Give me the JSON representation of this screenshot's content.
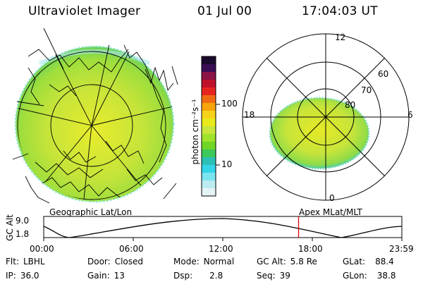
{
  "header": {
    "instrument": "Ultraviolet Imager",
    "date": "01 Jul 00",
    "time": "17:04:03 UT"
  },
  "colorbar": {
    "unit_label": "photon cm⁻²s⁻¹",
    "ticks": [
      "100",
      "10"
    ],
    "colors": [
      "#1a0a2e",
      "#3a0d55",
      "#8a1446",
      "#c0112b",
      "#e6231e",
      "#f06a14",
      "#f7a30c",
      "#f6d21a",
      "#e8ea1a",
      "#c8e63a",
      "#9ee22c",
      "#6fd628",
      "#3cc95a",
      "#2bbfb5",
      "#35d5e8",
      "#7ae4ef",
      "#bcecf2",
      "#e6f3f6"
    ]
  },
  "polar_plot": {
    "mlt_labels": {
      "top": "12",
      "left": "18",
      "right": "6",
      "bottom": "0"
    },
    "lat_labels": [
      "60",
      "70",
      "80"
    ]
  },
  "timeline": {
    "left_title": "Geographic Lat/Lon",
    "right_title": "Apex MLat/MLT",
    "y_axis_label": "GC Alt",
    "y_ticks": [
      "9.0",
      "1.8"
    ],
    "x_ticks": [
      "00:00",
      "06:00",
      "12:00",
      "18:00",
      "23:59"
    ],
    "marker_time": "17:04:03",
    "marker_color": "#e00000"
  },
  "footer": {
    "row1": [
      {
        "key": "Flt:",
        "value": "LBHL"
      },
      {
        "key": "Door:",
        "value": "Closed"
      },
      {
        "key": "Mode:",
        "value": "Normal"
      },
      {
        "key": "GC Alt:",
        "value": "5.8 Re"
      },
      {
        "key": "GLat:",
        "value": "88.4"
      }
    ],
    "row2": [
      {
        "key": "IP:",
        "value": "36.0"
      },
      {
        "key": "Gain:",
        "value": "13"
      },
      {
        "key": "Dsp:",
        "value": "2.8"
      },
      {
        "key": "Seq:",
        "value": "39"
      },
      {
        "key": "GLon:",
        "value": "38.8"
      }
    ]
  }
}
